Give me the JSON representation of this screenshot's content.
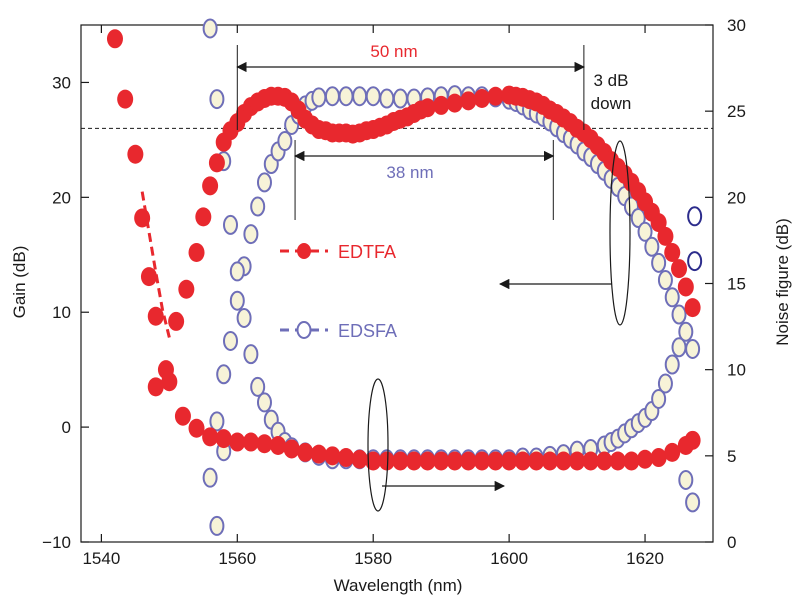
{
  "chart_data": {
    "type": "scatter",
    "xlabel": "Wavelength (nm)",
    "ylabel_left": "Gain (dB)",
    "ylabel_right": "Noise figure (dB)",
    "xlim": [
      1537,
      1630
    ],
    "ylim_left": [
      -10,
      35
    ],
    "ylim_right": [
      0,
      30
    ],
    "xticks": [
      1540,
      1560,
      1580,
      1600,
      1620
    ],
    "yticks_left": [
      -10,
      0,
      10,
      20,
      30
    ],
    "yticks_right": [
      0,
      5,
      10,
      15,
      20,
      25,
      30
    ],
    "grid": false,
    "legend": [
      {
        "label": "EDTFA",
        "color": "#e8282e",
        "marker": "filled-circle-dashed"
      },
      {
        "label": "EDSFA",
        "color": "#6e6eb8",
        "marker": "open-circle-dashed"
      }
    ],
    "colors": {
      "edtfa": "#e8282e",
      "edsfa_stroke": "#6e6eb8",
      "edsfa_fill": "#f7f3d8",
      "edsfa_dark": "#2c2c8c"
    },
    "reference_line_gain": 26,
    "annotations": {
      "bw50": "50 nm",
      "bw38": "38 nm",
      "down1": "3 dB",
      "down2": "down"
    },
    "series": [
      {
        "name": "EDTFA",
        "axis": "left",
        "quantity": "gain",
        "x": [
          1548,
          1549.5,
          1551,
          1552.5,
          1554,
          1555,
          1556,
          1557,
          1558,
          1559,
          1560,
          1561,
          1562,
          1563,
          1564,
          1565,
          1566,
          1567,
          1568,
          1569,
          1570,
          1571,
          1572,
          1573,
          1574,
          1575,
          1576,
          1577,
          1578,
          1579,
          1580,
          1581,
          1582,
          1583,
          1584,
          1585,
          1586,
          1587,
          1588,
          1590,
          1592,
          1594,
          1596,
          1598,
          1600,
          1601,
          1602,
          1603,
          1604,
          1605,
          1606,
          1607,
          1608,
          1609,
          1610,
          1611,
          1612,
          1613,
          1614,
          1615,
          1616,
          1617,
          1618,
          1619,
          1620,
          1621,
          1622,
          1623,
          1624,
          1625,
          1626,
          1627
        ],
        "y": [
          3.5,
          5,
          9.2,
          12,
          15.2,
          18.3,
          21,
          23,
          24.8,
          25.8,
          26.5,
          27.3,
          27.9,
          28.3,
          28.6,
          28.8,
          28.8,
          28.7,
          28.3,
          27.6,
          26.8,
          26.3,
          25.9,
          25.8,
          25.6,
          25.6,
          25.6,
          25.5,
          25.6,
          25.8,
          25.9,
          26.1,
          26.3,
          26.6,
          26.8,
          27.0,
          27.3,
          27.6,
          27.8,
          28.0,
          28.2,
          28.4,
          28.6,
          28.8,
          28.9,
          28.8,
          28.7,
          28.5,
          28.3,
          28.0,
          27.6,
          27.3,
          26.9,
          26.5,
          26.0,
          25.6,
          25.1,
          24.5,
          23.9,
          23.2,
          22.6,
          22.0,
          21.3,
          20.5,
          19.6,
          18.7,
          17.8,
          16.6,
          15.2,
          13.8,
          12.2,
          10.4
        ]
      },
      {
        "name": "EDTFA",
        "axis": "right",
        "quantity": "noise_figure",
        "x": [
          1542,
          1543.5,
          1545,
          1546,
          1547,
          1548,
          1550,
          1552,
          1554,
          1556,
          1558,
          1560,
          1562,
          1564,
          1566,
          1568,
          1570,
          1572,
          1574,
          1576,
          1578,
          1580,
          1582,
          1584,
          1586,
          1588,
          1590,
          1592,
          1594,
          1596,
          1598,
          1600,
          1602,
          1604,
          1606,
          1608,
          1610,
          1612,
          1614,
          1616,
          1618,
          1620,
          1622,
          1624,
          1626,
          1627
        ],
        "y": [
          29.2,
          25.7,
          22.5,
          18.8,
          15.4,
          13.1,
          9.3,
          7.3,
          6.6,
          6.1,
          6.0,
          5.8,
          5.8,
          5.7,
          5.6,
          5.4,
          5.2,
          5.1,
          5.0,
          4.9,
          4.8,
          4.7,
          4.7,
          4.7,
          4.7,
          4.7,
          4.7,
          4.7,
          4.7,
          4.7,
          4.7,
          4.7,
          4.7,
          4.7,
          4.7,
          4.7,
          4.7,
          4.7,
          4.7,
          4.7,
          4.7,
          4.8,
          4.9,
          5.2,
          5.6,
          5.9
        ]
      },
      {
        "name": "EDSFA",
        "axis": "left",
        "quantity": "gain",
        "x": [
          1557,
          1558,
          1559,
          1560,
          1561,
          1562,
          1563,
          1564,
          1565,
          1566,
          1567,
          1568,
          1569,
          1570,
          1571,
          1572,
          1574,
          1576,
          1578,
          1580,
          1582,
          1584,
          1586,
          1588,
          1590,
          1592,
          1594,
          1596,
          1598,
          1600,
          1601,
          1602,
          1603,
          1604,
          1605,
          1606,
          1607,
          1608,
          1609,
          1610,
          1611,
          1612,
          1613,
          1614,
          1615,
          1616,
          1617,
          1618,
          1619,
          1620,
          1621,
          1622,
          1623,
          1624,
          1625,
          1626,
          1627
        ],
        "y": [
          0.5,
          4.6,
          7.5,
          11,
          14,
          16.8,
          19.2,
          21.3,
          22.9,
          24.0,
          24.9,
          26.3,
          27.2,
          28.0,
          28.4,
          28.7,
          28.8,
          28.8,
          28.8,
          28.8,
          28.6,
          28.6,
          28.6,
          28.7,
          28.8,
          28.9,
          28.8,
          28.8,
          28.7,
          28.5,
          28.3,
          28.0,
          27.6,
          27.3,
          27.0,
          26.6,
          26.1,
          25.6,
          25.1,
          24.6,
          24.0,
          23.5,
          22.9,
          22.3,
          21.6,
          20.9,
          20.1,
          19.2,
          18.2,
          17.0,
          15.7,
          14.3,
          12.8,
          11.3,
          9.8,
          8.3,
          6.8
        ]
      },
      {
        "name": "EDSFA",
        "axis": "right",
        "quantity": "noise_figure",
        "x": [
          1556,
          1557,
          1558,
          1559,
          1560,
          1561,
          1562,
          1563,
          1564,
          1565,
          1566,
          1567,
          1568,
          1570,
          1572,
          1574,
          1576,
          1578,
          1580,
          1582,
          1584,
          1586,
          1588,
          1590,
          1592,
          1594,
          1596,
          1598,
          1600,
          1602,
          1604,
          1606,
          1608,
          1610,
          1612,
          1614,
          1615,
          1616,
          1617,
          1618,
          1619,
          1620,
          1621,
          1622,
          1623,
          1624,
          1625,
          1626,
          1627
        ],
        "y": [
          29.8,
          25.7,
          22.1,
          18.4,
          15.7,
          13.0,
          10.9,
          9.0,
          8.1,
          7.1,
          6.4,
          5.8,
          5.5,
          5.2,
          5.0,
          4.8,
          4.8,
          4.8,
          4.8,
          4.8,
          4.8,
          4.8,
          4.8,
          4.8,
          4.8,
          4.8,
          4.8,
          4.8,
          4.8,
          4.9,
          4.9,
          5.0,
          5.1,
          5.3,
          5.4,
          5.6,
          5.8,
          6.0,
          6.3,
          6.6,
          6.9,
          7.2,
          7.6,
          8.3,
          9.2,
          10.3,
          11.3,
          3.6,
          2.3
        ]
      },
      {
        "name": "EDSFA",
        "axis": "left",
        "quantity": "gain_outliers",
        "x": [
          1556,
          1557,
          1558
        ],
        "y": [
          -4.4,
          -8.6,
          -2.1
        ]
      },
      {
        "name": "EDSFA",
        "axis": "right",
        "quantity": "noise_figure_outliers",
        "x": [
          1627.3,
          1627.3
        ],
        "y": [
          18.9,
          16.3
        ]
      }
    ]
  }
}
